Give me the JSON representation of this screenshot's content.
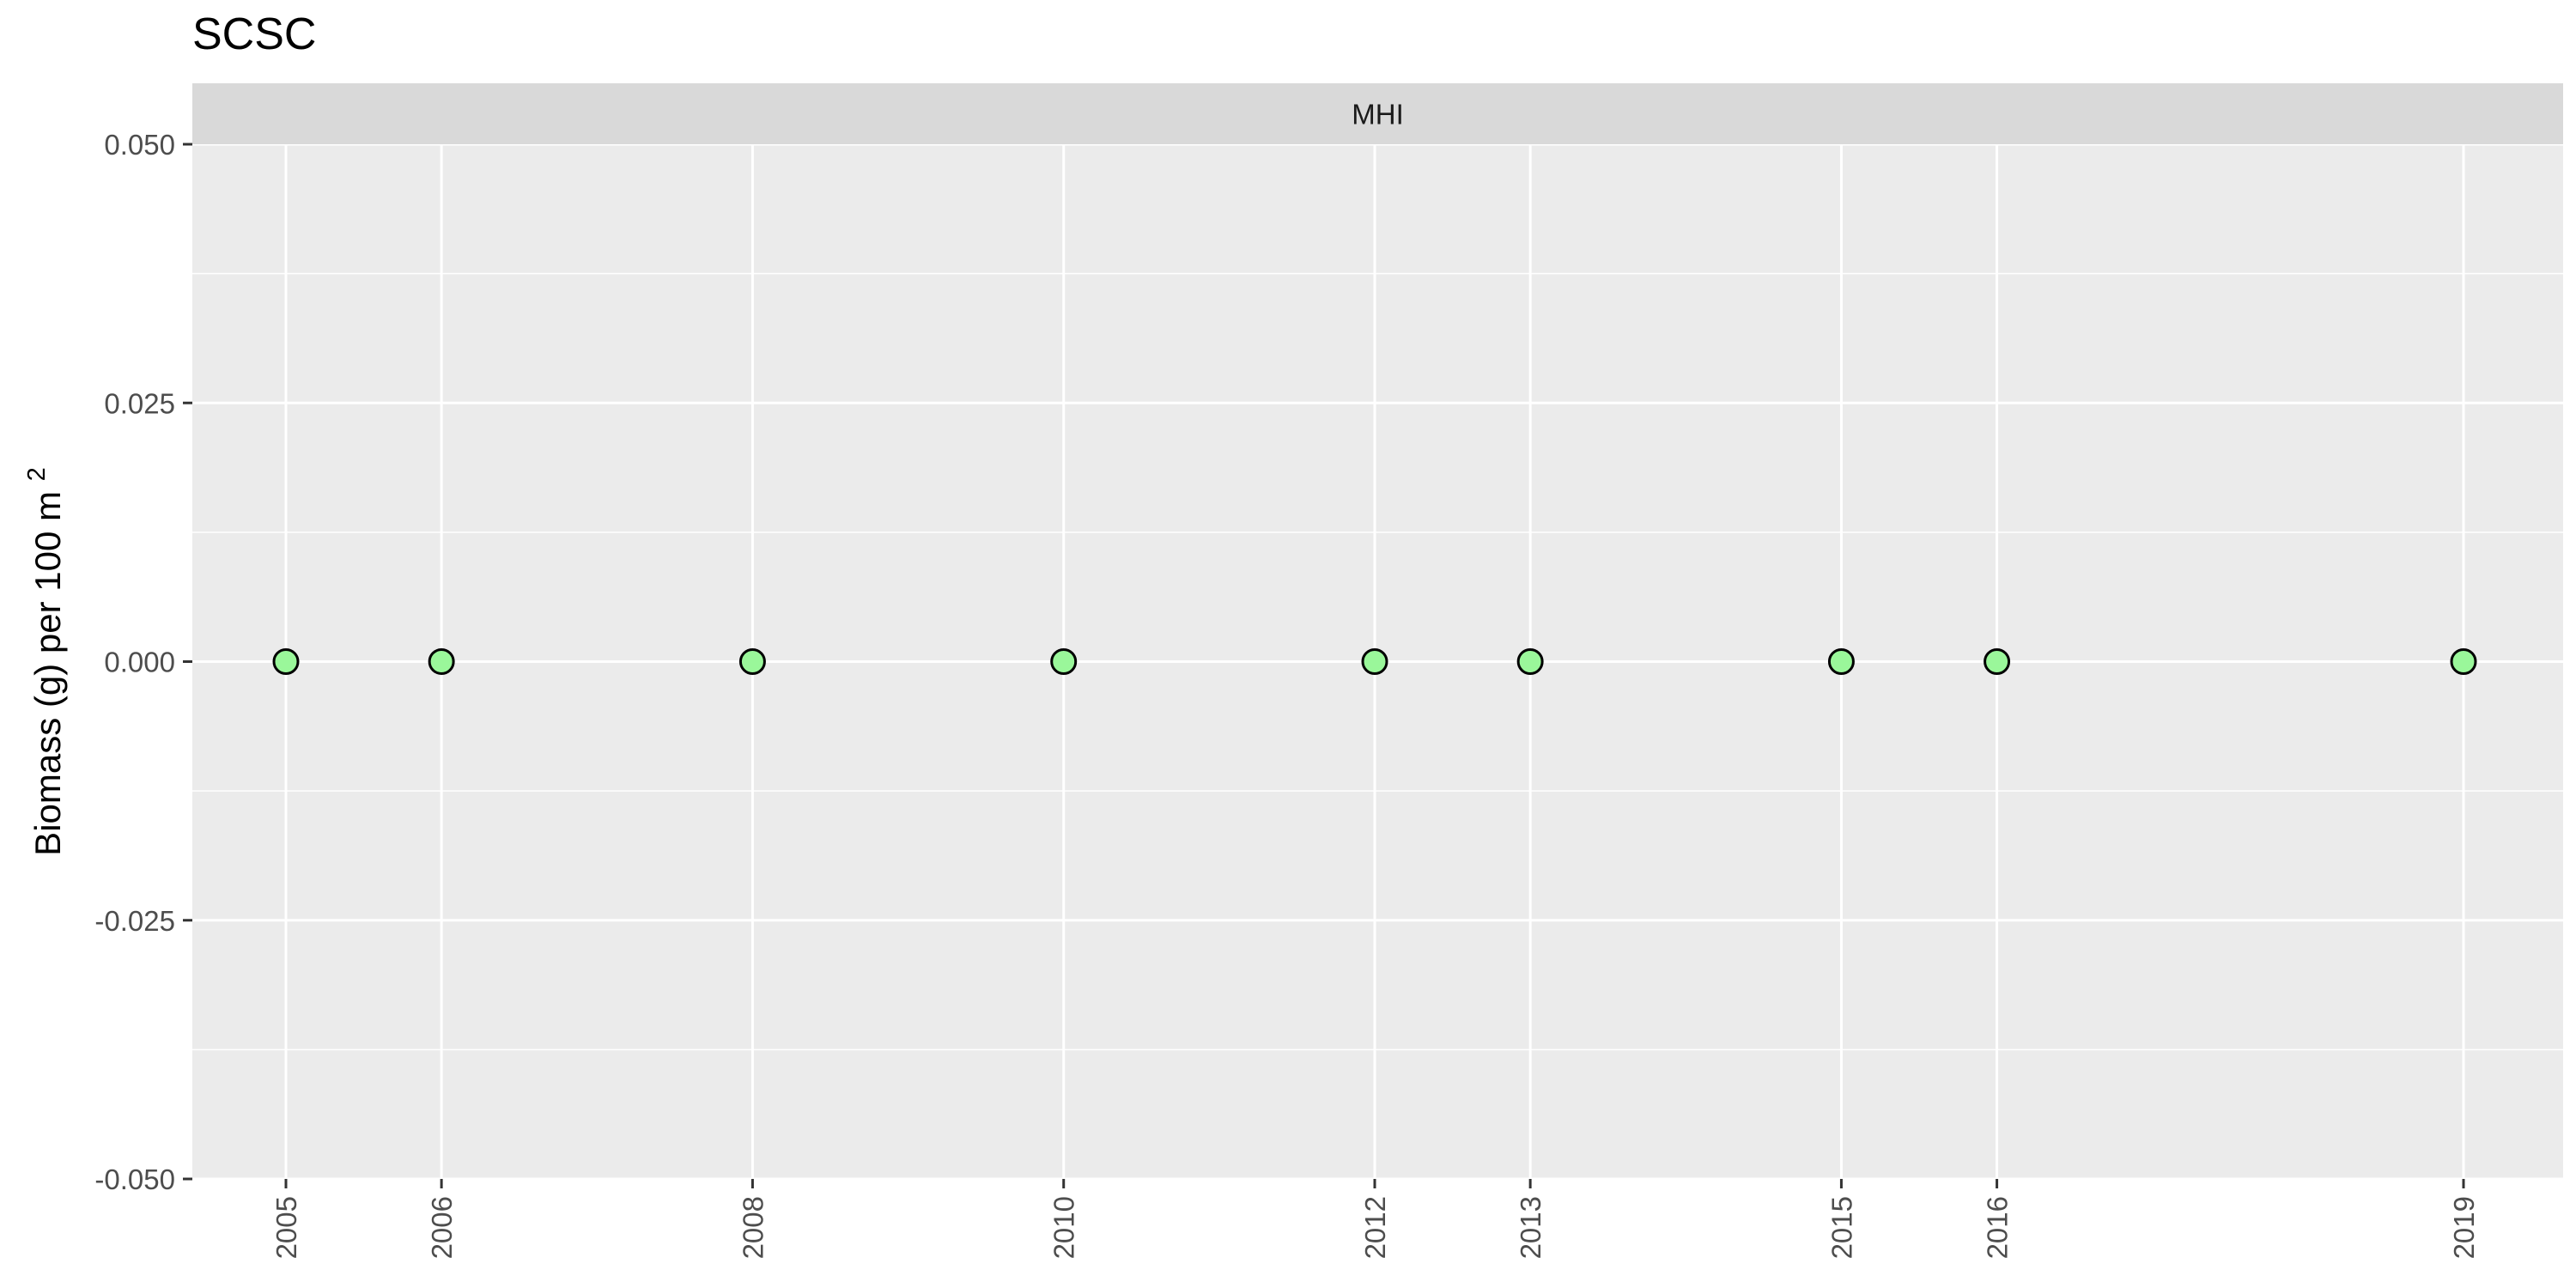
{
  "chart_data": {
    "type": "scatter",
    "title": "SCSC",
    "facet_label": "MHI",
    "ylabel_main": "Biomass (g) per 100 m",
    "ylabel_superscript": "2",
    "xlabel": "",
    "x_ticks": [
      "2005",
      "2006",
      "2008",
      "2010",
      "2012",
      "2013",
      "2015",
      "2016",
      "2019"
    ],
    "y_ticks": [
      "-0.050",
      "-0.025",
      "0.000",
      "0.025",
      "0.050"
    ],
    "ylim": [
      -0.05,
      0.05
    ],
    "grid": true,
    "legend": "none",
    "series": [
      {
        "x": [
          2005,
          2006,
          2008,
          2010,
          2012,
          2013,
          2015,
          2016,
          2019
        ],
        "y": [
          0,
          0,
          0,
          0,
          0,
          0,
          0,
          0,
          0
        ]
      }
    ],
    "colors": {
      "point_fill": "#9AF79A",
      "point_stroke": "#000000",
      "panel_bg": "#EBEBEB",
      "strip_bg": "#D9D9D9",
      "grid": "#FFFFFF",
      "tick_text": "#4D4D4D",
      "axis_tick": "#333333"
    }
  }
}
